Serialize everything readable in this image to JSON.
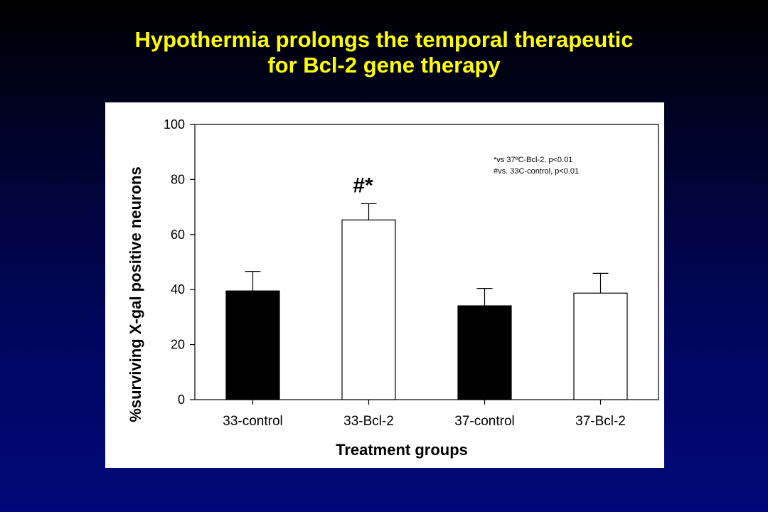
{
  "slide": {
    "title_line1": "Hypothermia prolongs the temporal therapeutic",
    "title_line2": "for Bcl-2 gene therapy",
    "title_color": "#ffff00",
    "background_colors": [
      "#000000",
      "#00087a"
    ]
  },
  "chart_data": {
    "type": "bar",
    "categories": [
      "33-control",
      "33-Bcl-2",
      "37-control",
      "37-Bcl-2"
    ],
    "values": [
      39.5,
      65.3,
      34.1,
      38.7
    ],
    "errors": [
      7.1,
      5.9,
      6.3,
      7.2
    ],
    "bar_fills": [
      "#000000",
      "#ffffff",
      "#000000",
      "#ffffff"
    ],
    "xlabel": "Treatment groups",
    "ylabel": "%surviving X-gal positive neurons",
    "ylim": [
      0,
      100
    ],
    "yticks": [
      "0",
      "20",
      "40",
      "60",
      "80",
      "100"
    ],
    "grid": false,
    "significance_marker": {
      "category": "33-Bcl-2",
      "text": "#*"
    },
    "annotations": [
      "*vs 37ºC-Bcl-2, p<0.01",
      "#vs. 33C-control, p<0.01"
    ]
  }
}
